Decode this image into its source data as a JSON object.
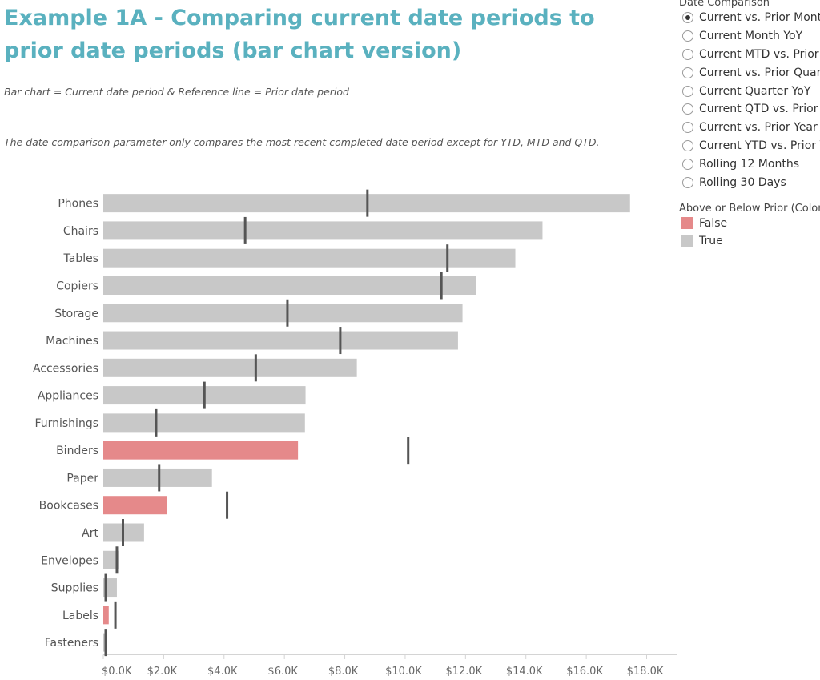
{
  "header": {
    "title": "Example 1A - Comparing current date periods to prior date periods (bar chart version)",
    "subtitle1": "Bar chart = Current date period & Reference line = Prior date period",
    "subtitle2": "The date comparison parameter only compares the most recent completed date period except for YTD, MTD and QTD."
  },
  "legend": {
    "date_title": "Date Comparison",
    "options": [
      {
        "label": "Current vs. Prior Month",
        "checked": true
      },
      {
        "label": "Current Month YoY",
        "checked": false
      },
      {
        "label": "Current MTD vs. Prior MTD",
        "checked": false
      },
      {
        "label": "Current vs. Prior Quarter",
        "checked": false
      },
      {
        "label": "Current Quarter YoY",
        "checked": false
      },
      {
        "label": "Current QTD vs. Prior QTD",
        "checked": false
      },
      {
        "label": "Current vs. Prior Year",
        "checked": false
      },
      {
        "label": "Current YTD vs. Prior YTD",
        "checked": false
      },
      {
        "label": "Rolling 12 Months",
        "checked": false
      },
      {
        "label": "Rolling 30 Days",
        "checked": false
      }
    ],
    "color_title": "Above or Below Prior (Color)",
    "color_items": [
      {
        "label": "False",
        "color": "#e5898a"
      },
      {
        "label": "True",
        "color": "#c8c8c8"
      }
    ]
  },
  "chart_data": {
    "type": "bar",
    "orientation": "horizontal",
    "categories": [
      "Phones",
      "Chairs",
      "Tables",
      "Copiers",
      "Storage",
      "Machines",
      "Accessories",
      "Appliances",
      "Furnishings",
      "Binders",
      "Paper",
      "Bookcases",
      "Art",
      "Envelopes",
      "Supplies",
      "Labels",
      "Fasteners"
    ],
    "values": [
      17450,
      14550,
      13650,
      12350,
      11900,
      11750,
      8400,
      6700,
      6680,
      6450,
      3600,
      2100,
      1350,
      500,
      450,
      180,
      80
    ],
    "reference_values": [
      8750,
      4700,
      11400,
      11200,
      6100,
      7850,
      5050,
      3350,
      1750,
      10100,
      1850,
      4100,
      650,
      450,
      80,
      400,
      80
    ],
    "above_prior": [
      true,
      true,
      true,
      true,
      true,
      true,
      true,
      true,
      true,
      false,
      true,
      false,
      true,
      true,
      true,
      false,
      true
    ],
    "xlim": [
      0,
      18000
    ],
    "xticks": [
      0,
      2000,
      4000,
      6000,
      8000,
      10000,
      12000,
      14000,
      16000,
      18000
    ],
    "xtick_labels": [
      "$0.0K",
      "$2.0K",
      "$4.0K",
      "$6.0K",
      "$8.0K",
      "$10.0K",
      "$12.0K",
      "$14.0K",
      "$16.0K",
      "$18.0K"
    ],
    "colors": {
      "true": "#c8c8c8",
      "false": "#e5898a",
      "reference": "#555555"
    }
  }
}
